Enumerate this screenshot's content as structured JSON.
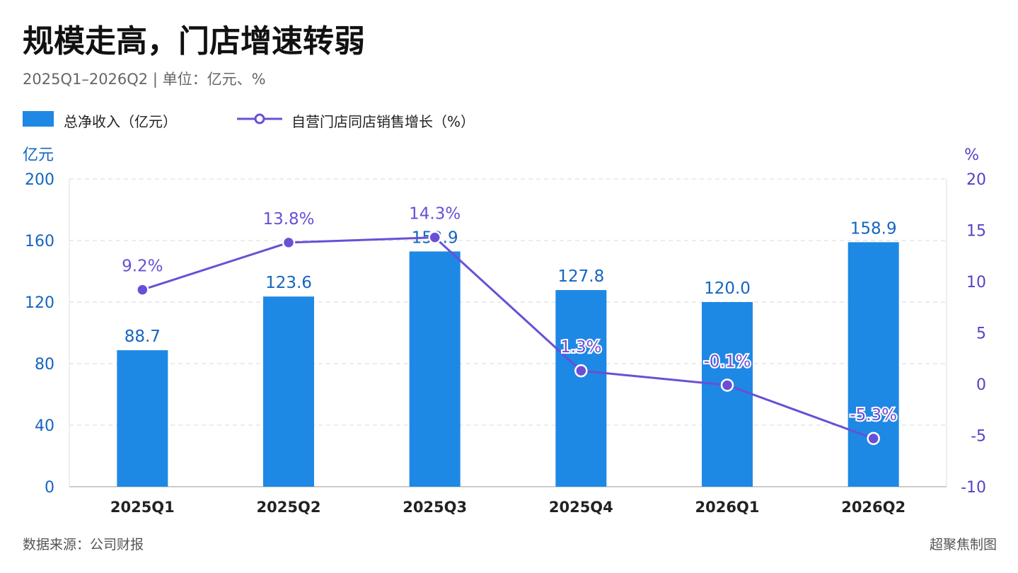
{
  "title": "规模走高，门店增速转弱",
  "subtitle": "2025Q1–2026Q2 | 单位：亿元、%",
  "legend": {
    "bar_label": "总净收入（亿元）",
    "line_label": "自营门店同店销售增长（%）"
  },
  "footer": {
    "source": "数据来源：公司财报",
    "credit": "超聚焦制图"
  },
  "colors": {
    "bar": "#1e88e5",
    "line": "#6a4fd6",
    "bar_label": "#1565c0",
    "line_label": "#6a4fd6",
    "left_axis": "#1565c0",
    "right_axis": "#5b3fc4"
  },
  "chart_data": {
    "type": "bar",
    "categories": [
      "2025Q1",
      "2025Q2",
      "2025Q3",
      "2025Q4",
      "2026Q1",
      "2026Q2"
    ],
    "left_axis": {
      "unit": "亿元",
      "ylim": [
        0,
        200
      ],
      "ticks": [
        "0",
        "40",
        "80",
        "120",
        "160",
        "200"
      ]
    },
    "right_axis": {
      "unit": "%",
      "ylim": [
        -10,
        20
      ],
      "ticks": [
        "-10",
        "-5",
        "0",
        "5",
        "10",
        "15",
        "20"
      ]
    },
    "series": [
      {
        "type": "bar",
        "axis": "left",
        "values": [
          88.7,
          123.6,
          152.9,
          127.8,
          120.0,
          158.9
        ],
        "labels": [
          "88.7",
          "123.6",
          "152.9",
          "127.8",
          "120.0",
          "158.9"
        ]
      },
      {
        "type": "line",
        "axis": "right",
        "values": [
          9.2,
          13.8,
          14.3,
          1.3,
          -0.1,
          -5.3
        ],
        "labels": [
          "9.2%",
          "13.8%",
          "14.3%",
          "1.3%",
          "-0.1%",
          "-5.3%"
        ]
      }
    ],
    "grid": true,
    "legend_position": "top-left"
  }
}
